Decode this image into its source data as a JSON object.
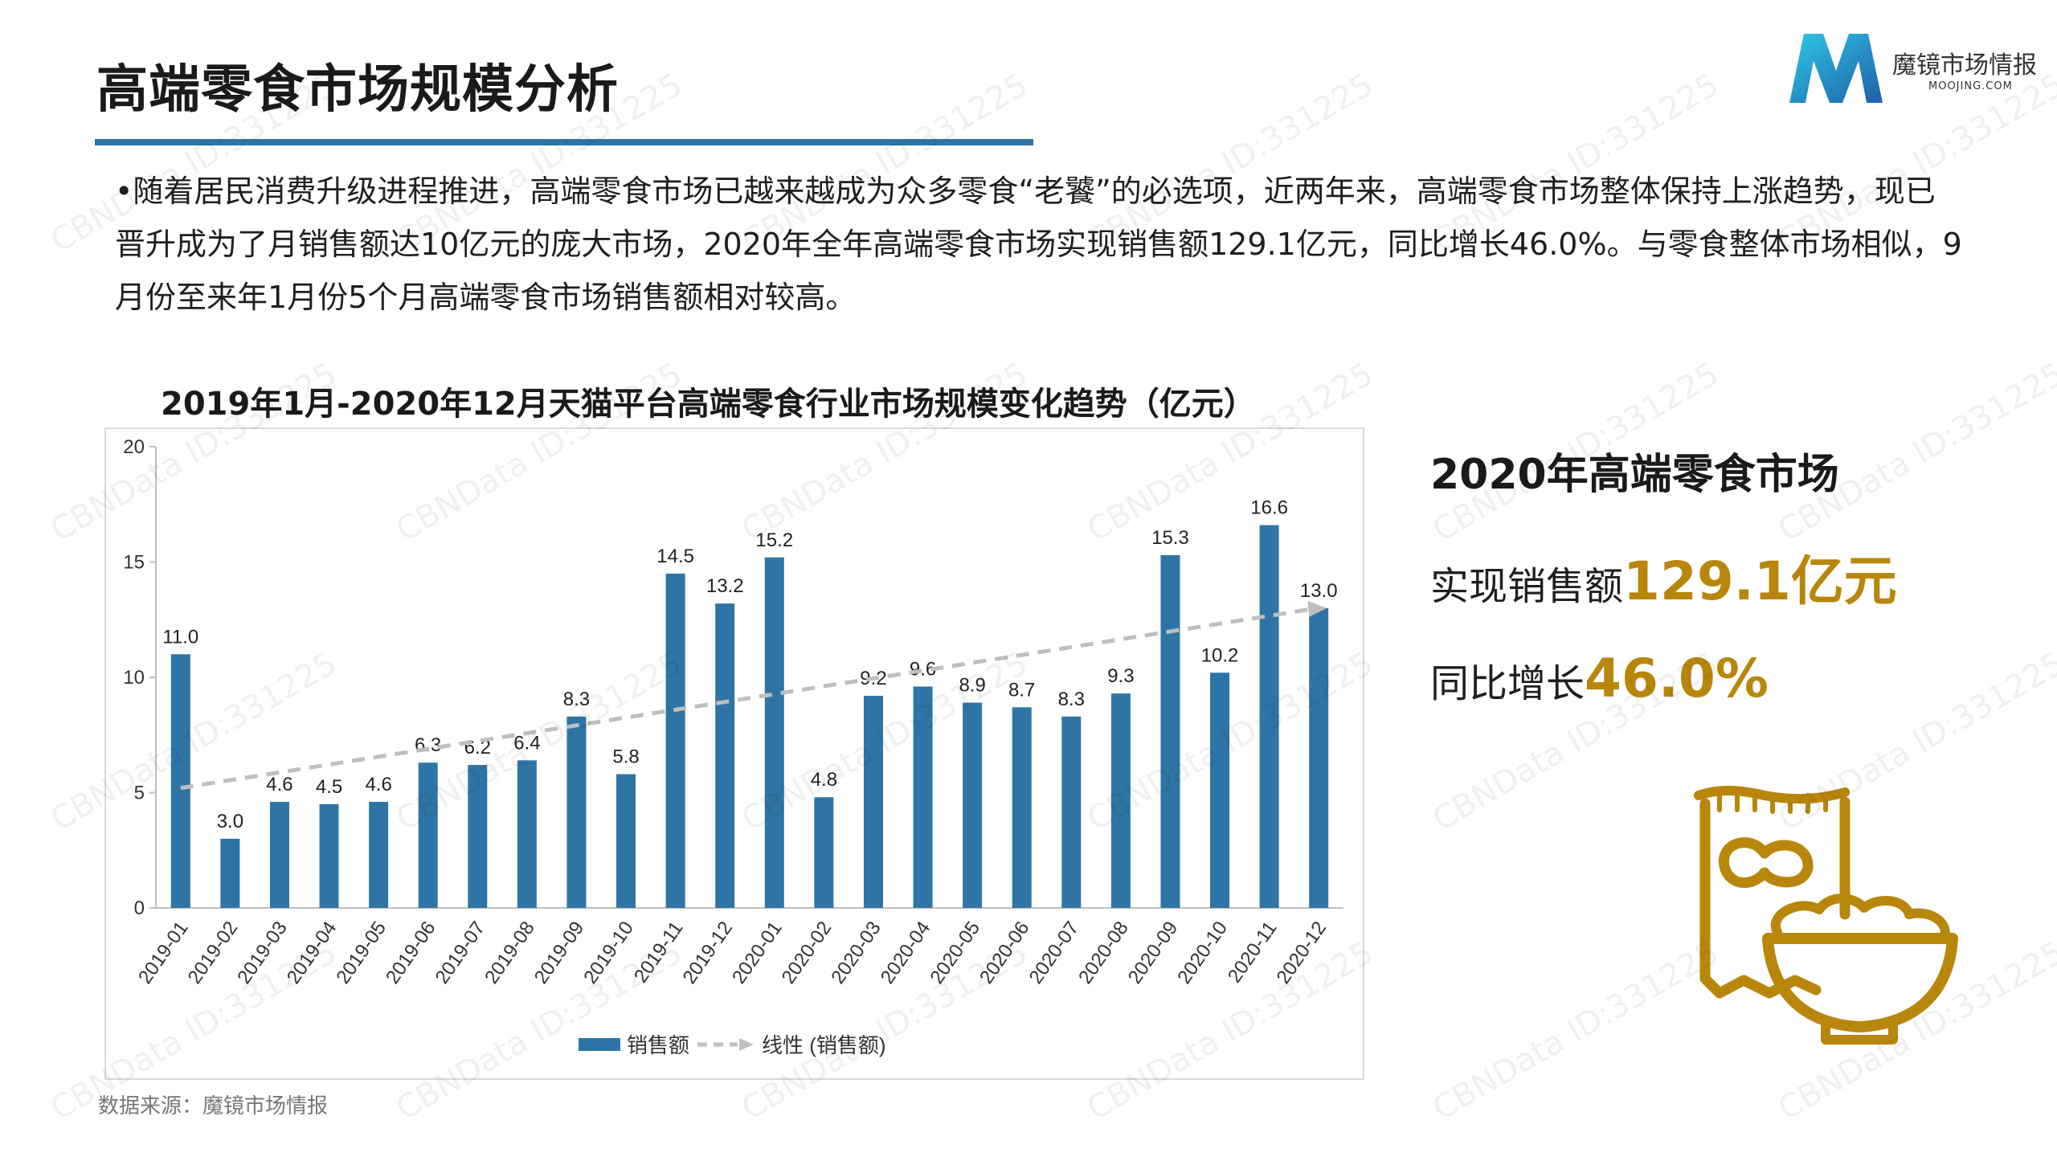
{
  "header": {
    "title": "高端零食市场规模分析",
    "logo_name": "魔镜市场情报",
    "logo_domain": "MOOJING.COM"
  },
  "intro_text": "•随着居民消费升级进程推进，高端零食市场已越来越成为众多零食“老饕”的必选项，近两年来，高端零食市场整体保持上涨趋势，现已晋升成为了月销售额达10亿元的庞大市场，2020年全年高端零食市场实现销售额129.1亿元，同比增长46.0%。与零食整体市场相似，9月份至来年1月份5个月高端零食市场销售额相对较高。",
  "chart_title": "2019年1月-2020年12月天猫平台高端零食行业市场规模变化趋势（亿元）",
  "chart_data": {
    "type": "bar",
    "categories": [
      "2019-01",
      "2019-02",
      "2019-03",
      "2019-04",
      "2019-05",
      "2019-06",
      "2019-07",
      "2019-08",
      "2019-09",
      "2019-10",
      "2019-11",
      "2019-12",
      "2020-01",
      "2020-02",
      "2020-03",
      "2020-04",
      "2020-05",
      "2020-06",
      "2020-07",
      "2020-08",
      "2020-09",
      "2020-10",
      "2020-11",
      "2020-12"
    ],
    "series": [
      {
        "name": "销售额",
        "values": [
          11.0,
          3.0,
          4.6,
          4.5,
          4.6,
          6.3,
          6.2,
          6.4,
          8.3,
          5.8,
          14.5,
          13.2,
          15.2,
          4.8,
          9.2,
          9.6,
          8.9,
          8.7,
          8.3,
          9.3,
          15.3,
          10.2,
          16.6,
          13.0
        ]
      }
    ],
    "trendline": {
      "name": "线性 (销售额)",
      "start": 5.2,
      "end": 13.0
    },
    "yticks": [
      "0",
      "5",
      "10",
      "15",
      "20"
    ],
    "ylim": [
      0,
      20
    ],
    "legend_position": "bottom",
    "grid": false
  },
  "source": "数据来源：魔镜市场情报",
  "summary": {
    "title": "2020年高端零食市场",
    "sales_label": "实现销售额",
    "sales_value": "129.1亿元",
    "growth_label": "同比增长",
    "growth_value": "46.0%"
  },
  "watermark_text": "CBNData ID:331225",
  "colors": {
    "bar": "#2e75a6",
    "trend": "#bfbfbf",
    "accent": "#b8860b",
    "underline": "#2e75a6"
  }
}
